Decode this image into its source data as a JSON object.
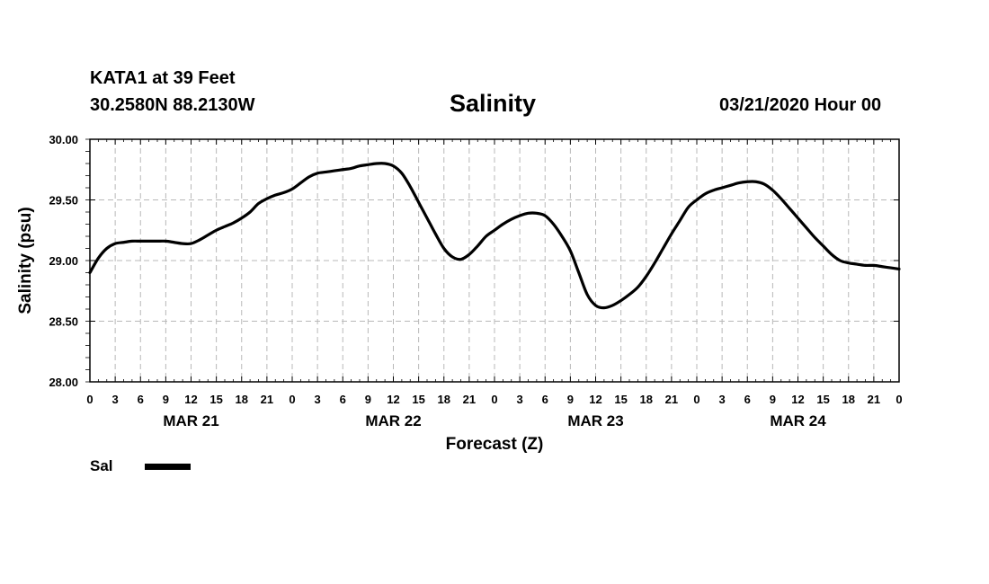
{
  "header": {
    "station": "KATA1 at 39 Feet",
    "coords": "30.2580N 88.2130W",
    "title": "Salinity",
    "runtime": "03/21/2020 Hour 00"
  },
  "legend": {
    "label": "Sal",
    "color": "#000000"
  },
  "chart_data": {
    "type": "line",
    "title": "Salinity",
    "xlabel": "Forecast (Z)",
    "ylabel": "Salinity (psu)",
    "ylim": [
      28.0,
      30.0
    ],
    "y_ticks": [
      "28.00",
      "28.50",
      "29.00",
      "29.50",
      "30.00"
    ],
    "x_range_hours": [
      0,
      96
    ],
    "x_tick_labels": [
      "0",
      "3",
      "6",
      "9",
      "12",
      "15",
      "18",
      "21",
      "0",
      "3",
      "6",
      "9",
      "12",
      "15",
      "18",
      "21",
      "0",
      "3",
      "6",
      "9",
      "12",
      "15",
      "18",
      "21",
      "0",
      "3",
      "6",
      "9",
      "12",
      "15",
      "18",
      "21",
      "0"
    ],
    "day_labels": [
      {
        "label": "MAR 21",
        "hour": 12
      },
      {
        "label": "MAR 22",
        "hour": 36
      },
      {
        "label": "MAR 23",
        "hour": 60
      },
      {
        "label": "MAR 24",
        "hour": 84
      }
    ],
    "grid": true,
    "series": [
      {
        "name": "Sal",
        "color": "#000000",
        "x": [
          0,
          1,
          2,
          3,
          4,
          5,
          6,
          7,
          8,
          9,
          10,
          11,
          12,
          13,
          14,
          15,
          16,
          17,
          18,
          19,
          20,
          21,
          22,
          23,
          24,
          25,
          26,
          27,
          28,
          29,
          30,
          31,
          32,
          33,
          34,
          35,
          36,
          37,
          38,
          39,
          40,
          41,
          42,
          43,
          44,
          45,
          46,
          47,
          48,
          49,
          50,
          51,
          52,
          53,
          54,
          55,
          56,
          57,
          58,
          59,
          60,
          61,
          62,
          63,
          64,
          65,
          66,
          67,
          68,
          69,
          70,
          71,
          72,
          73,
          74,
          75,
          76,
          77,
          78,
          79,
          80,
          81,
          82,
          83,
          84,
          85,
          86,
          87,
          88,
          89,
          90,
          91,
          92,
          93,
          94,
          95,
          96
        ],
        "y": [
          28.9,
          29.02,
          29.1,
          29.14,
          29.15,
          29.16,
          29.16,
          29.16,
          29.16,
          29.16,
          29.15,
          29.14,
          29.14,
          29.17,
          29.21,
          29.25,
          29.28,
          29.31,
          29.35,
          29.4,
          29.47,
          29.51,
          29.54,
          29.56,
          29.59,
          29.64,
          29.69,
          29.72,
          29.73,
          29.74,
          29.75,
          29.76,
          29.78,
          29.79,
          29.8,
          29.8,
          29.78,
          29.72,
          29.61,
          29.48,
          29.35,
          29.22,
          29.1,
          29.03,
          29.01,
          29.05,
          29.12,
          29.2,
          29.25,
          29.3,
          29.34,
          29.37,
          29.39,
          29.39,
          29.37,
          29.3,
          29.2,
          29.08,
          28.9,
          28.72,
          28.63,
          28.61,
          28.63,
          28.67,
          28.72,
          28.78,
          28.87,
          28.98,
          29.1,
          29.22,
          29.33,
          29.44,
          29.5,
          29.55,
          29.58,
          29.6,
          29.62,
          29.64,
          29.65,
          29.65,
          29.63,
          29.58,
          29.51,
          29.43,
          29.35,
          29.27,
          29.19,
          29.12,
          29.05,
          29.0,
          28.98,
          28.97,
          28.96,
          28.96,
          28.95,
          28.94,
          28.93
        ]
      }
    ]
  }
}
